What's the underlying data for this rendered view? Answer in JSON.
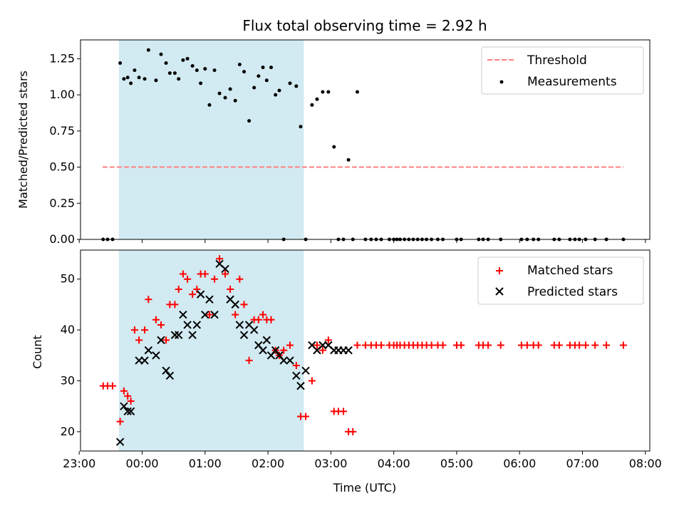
{
  "chart_data": {
    "title": "Flux total observing time = 2.92 h",
    "xlabel": "Time (UTC)",
    "x_ticks": [
      "23:00",
      "00:00",
      "01:00",
      "02:00",
      "03:00",
      "04:00",
      "05:00",
      "06:00",
      "07:00",
      "08:00"
    ],
    "x_range_hours": [
      -0.98,
      8.07
    ],
    "colors": {
      "threshold": "#ff8080",
      "measurements": "#000000",
      "matched": "#ff0000",
      "predicted": "#000000",
      "span_fill": "#add8e6"
    },
    "top": {
      "type": "scatter",
      "ylabel": "Matched/Predicted stars",
      "ylim": [
        0,
        1.38
      ],
      "y_ticks": [
        "0.00",
        "0.25",
        "0.50",
        "0.75",
        "1.00",
        "1.25"
      ],
      "highlight_span": [
        -0.37,
        2.57
      ],
      "threshold": {
        "name": "Threshold",
        "value": 0.5,
        "x": [
          -0.63,
          7.65
        ]
      },
      "legend": [
        "Threshold",
        "Measurements"
      ],
      "legend_position": "upper right",
      "measurements": {
        "name": "Measurements",
        "x": [
          -0.62,
          -0.55,
          -0.47,
          -0.35,
          -0.29,
          -0.23,
          -0.18,
          -0.12,
          -0.05,
          0.04,
          0.1,
          0.22,
          0.3,
          0.38,
          0.44,
          0.52,
          0.58,
          0.65,
          0.72,
          0.8,
          0.87,
          0.93,
          1.0,
          1.07,
          1.15,
          1.23,
          1.32,
          1.4,
          1.48,
          1.55,
          1.62,
          1.7,
          1.78,
          1.85,
          1.92,
          1.98,
          2.05,
          2.12,
          2.18,
          2.25,
          2.35,
          2.45,
          2.52,
          2.6,
          2.7,
          2.78,
          2.87,
          2.96,
          3.05,
          3.12,
          3.2,
          3.28,
          3.35,
          3.42,
          3.55,
          3.64,
          3.72,
          3.8,
          3.93,
          4.0,
          4.05,
          4.1,
          4.17,
          4.24,
          4.31,
          4.38,
          4.45,
          4.52,
          4.6,
          4.7,
          4.78,
          5.0,
          5.07,
          5.35,
          5.42,
          5.5,
          5.7,
          6.03,
          6.12,
          6.22,
          6.3,
          6.55,
          6.63,
          6.8,
          6.88,
          6.95,
          7.05,
          7.2,
          7.38,
          7.65
        ],
        "y": [
          0,
          0,
          0,
          1.22,
          1.11,
          1.12,
          1.08,
          1.17,
          1.12,
          1.11,
          1.31,
          1.1,
          1.28,
          1.22,
          1.15,
          1.15,
          1.11,
          1.24,
          1.25,
          1.2,
          1.17,
          1.08,
          1.18,
          0.93,
          1.17,
          1.01,
          0.98,
          1.04,
          0.96,
          1.21,
          1.16,
          0.82,
          1.05,
          1.13,
          1.19,
          1.1,
          1.19,
          1.0,
          1.03,
          0,
          1.08,
          1.06,
          0.78,
          0,
          0.93,
          0.97,
          1.02,
          1.02,
          0.64,
          0,
          0,
          0.55,
          0,
          1.02,
          0,
          0,
          0,
          0,
          0,
          0,
          0,
          0,
          0,
          0,
          0,
          0,
          0,
          0,
          0,
          0,
          0,
          0,
          0,
          0,
          0,
          0,
          0,
          0,
          0,
          0,
          0,
          0,
          0,
          0,
          0,
          0,
          0,
          0,
          0,
          0
        ]
      }
    },
    "bottom": {
      "type": "scatter",
      "ylabel": "Count",
      "ylim": [
        16.2,
        55.7
      ],
      "y_ticks": [
        "20",
        "30",
        "40",
        "50"
      ],
      "highlight_span": [
        -0.37,
        2.57
      ],
      "legend": [
        "Matched stars",
        "Predicted stars"
      ],
      "legend_position": "upper right",
      "matched": {
        "name": "Matched stars",
        "x": [
          -0.62,
          -0.55,
          -0.47,
          -0.35,
          -0.29,
          -0.23,
          -0.18,
          -0.12,
          -0.05,
          0.04,
          0.1,
          0.22,
          0.3,
          0.38,
          0.44,
          0.52,
          0.58,
          0.65,
          0.72,
          0.8,
          0.87,
          0.93,
          1.0,
          1.07,
          1.15,
          1.23,
          1.32,
          1.4,
          1.48,
          1.55,
          1.62,
          1.7,
          1.78,
          1.85,
          1.92,
          1.98,
          2.05,
          2.12,
          2.18,
          2.25,
          2.35,
          2.45,
          2.52,
          2.6,
          2.7,
          2.78,
          2.87,
          2.96,
          3.05,
          3.12,
          3.2,
          3.28,
          3.35,
          3.42,
          3.55,
          3.64,
          3.72,
          3.8,
          3.93,
          4.0,
          4.05,
          4.1,
          4.17,
          4.24,
          4.31,
          4.38,
          4.45,
          4.52,
          4.6,
          4.7,
          4.78,
          5.0,
          5.07,
          5.35,
          5.42,
          5.5,
          5.7,
          6.03,
          6.12,
          6.22,
          6.3,
          6.55,
          6.63,
          6.8,
          6.88,
          6.95,
          7.05,
          7.2,
          7.38,
          7.65
        ],
        "y": [
          29,
          29,
          29,
          22,
          28,
          27,
          26,
          40,
          38,
          40,
          46,
          42,
          41,
          38,
          45,
          45,
          48,
          51,
          50,
          47,
          48,
          51,
          51,
          43,
          50,
          54,
          51,
          48,
          43,
          50,
          45,
          34,
          42,
          42,
          43,
          42,
          42,
          36,
          35,
          36,
          37,
          33,
          23,
          23,
          30,
          37,
          36,
          38,
          24,
          24,
          24,
          20,
          20,
          37,
          37,
          37,
          37,
          37,
          37,
          37,
          37,
          37,
          37,
          37,
          37,
          37,
          37,
          37,
          37,
          37,
          37,
          37,
          37,
          37,
          37,
          37,
          37,
          37,
          37,
          37,
          37,
          37,
          37,
          37,
          37,
          37,
          37,
          37,
          37,
          37
        ]
      },
      "predicted": {
        "name": "Predicted stars",
        "x": [
          -0.35,
          -0.29,
          -0.23,
          -0.18,
          -0.05,
          0.04,
          0.1,
          0.22,
          0.3,
          0.38,
          0.44,
          0.52,
          0.58,
          0.65,
          0.72,
          0.8,
          0.87,
          0.93,
          1.0,
          1.07,
          1.15,
          1.23,
          1.32,
          1.4,
          1.48,
          1.55,
          1.62,
          1.7,
          1.78,
          1.85,
          1.92,
          1.98,
          2.05,
          2.12,
          2.18,
          2.25,
          2.35,
          2.45,
          2.52,
          2.6,
          2.7,
          2.78,
          2.87,
          2.96,
          3.05,
          3.12,
          3.2,
          3.28
        ],
        "y": [
          18,
          25,
          24,
          24,
          34,
          34,
          36,
          35,
          38,
          32,
          31,
          39,
          39,
          43,
          41,
          39,
          41,
          47,
          43,
          46,
          43,
          53,
          52,
          46,
          45,
          41,
          39,
          41,
          40,
          37,
          36,
          38,
          35,
          36,
          35,
          34,
          34,
          31,
          29,
          32,
          37,
          36,
          37,
          37,
          36,
          36,
          36,
          36
        ]
      }
    }
  }
}
